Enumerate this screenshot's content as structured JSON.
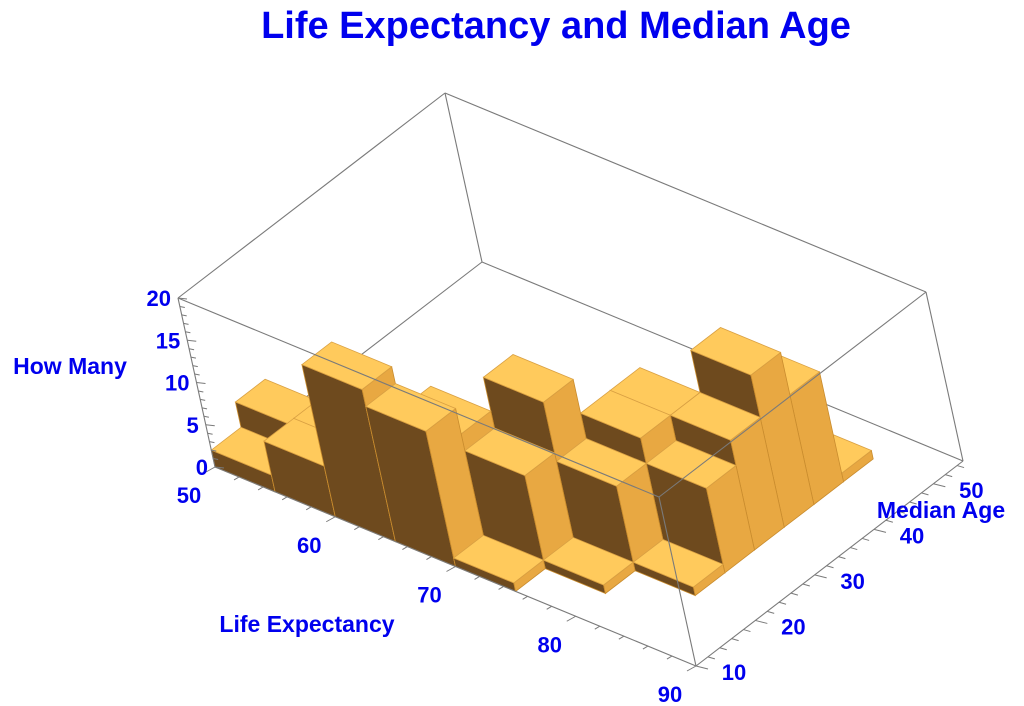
{
  "chart_data": {
    "type": "bar3d",
    "title": "Life Expectancy and Median Age",
    "xlabel": "Life Expectancy",
    "ylabel": "Median Age",
    "zlabel": "How Many",
    "xlim": [
      50,
      90
    ],
    "ylim": [
      10,
      55
    ],
    "zlim": [
      0,
      20
    ],
    "xticks": [
      "50",
      "60",
      "70",
      "80",
      "90"
    ],
    "yticks": [
      "10",
      "20",
      "30",
      "40",
      "50"
    ],
    "zticks": [
      "0",
      "5",
      "10",
      "15",
      "20"
    ],
    "bin_width_x": 5,
    "bin_width_y": 5,
    "bars": [
      {
        "x": 55,
        "y": 15,
        "count": 2
      },
      {
        "x": 55,
        "y": 20,
        "count": 5
      },
      {
        "x": 60,
        "y": 15,
        "count": 6
      },
      {
        "x": 60,
        "y": 20,
        "count": 6
      },
      {
        "x": 65,
        "y": 15,
        "count": 18
      },
      {
        "x": 65,
        "y": 20,
        "count": 10
      },
      {
        "x": 70,
        "y": 15,
        "count": 16
      },
      {
        "x": 70,
        "y": 20,
        "count": 13
      },
      {
        "x": 75,
        "y": 15,
        "count": 1
      },
      {
        "x": 75,
        "y": 20,
        "count": 11
      },
      {
        "x": 75,
        "y": 25,
        "count": 17
      },
      {
        "x": 75,
        "y": 30,
        "count": 6
      },
      {
        "x": 80,
        "y": 20,
        "count": 1
      },
      {
        "x": 80,
        "y": 25,
        "count": 10
      },
      {
        "x": 80,
        "y": 30,
        "count": 13
      },
      {
        "x": 80,
        "y": 35,
        "count": 13
      },
      {
        "x": 80,
        "y": 40,
        "count": 5
      },
      {
        "x": 85,
        "y": 25,
        "count": 1
      },
      {
        "x": 85,
        "y": 30,
        "count": 10
      },
      {
        "x": 85,
        "y": 35,
        "count": 13
      },
      {
        "x": 85,
        "y": 40,
        "count": 18
      },
      {
        "x": 85,
        "y": 45,
        "count": 13
      },
      {
        "x": 85,
        "y": 50,
        "count": 1
      }
    ],
    "bar_color": "#ffca5c",
    "side_color": "#e8a842",
    "dark_color": "#6e4a1e"
  }
}
